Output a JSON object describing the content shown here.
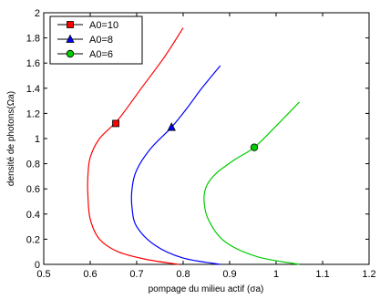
{
  "chart_data": {
    "type": "line",
    "title": "",
    "xlabel": "pompage du milieu actif (σa)",
    "ylabel": "densité de photons(Ωa)",
    "xlim": [
      0.5,
      1.2
    ],
    "ylim": [
      0,
      2
    ],
    "xticks": [
      0.5,
      0.6,
      0.7,
      0.8,
      0.9,
      1,
      1.1,
      1.2
    ],
    "yticks": [
      0,
      0.2,
      0.4,
      0.6,
      0.8,
      1,
      1.2,
      1.4,
      1.6,
      1.8,
      2
    ],
    "xtick_labels": [
      "0.5",
      "0.6",
      "0.7",
      "0.8",
      "0.9",
      "1",
      "1.1",
      "1.2"
    ],
    "ytick_labels": [
      "0",
      "0.2",
      "0.4",
      "0.6",
      "0.8",
      "1",
      "1.2",
      "1.4",
      "1.6",
      "1.8",
      "2"
    ],
    "grid": false,
    "legend_position": "top-left",
    "series": [
      {
        "name": "A0=10",
        "color": "#ff0000",
        "marker": "square",
        "marker_point": [
          0.655,
          1.12
        ],
        "x": [
          0.79,
          0.72,
          0.66,
          0.62,
          0.6,
          0.595,
          0.595,
          0.6,
          0.62,
          0.66,
          0.71,
          0.76,
          0.8
        ],
        "y": [
          0.0,
          0.04,
          0.1,
          0.2,
          0.36,
          0.55,
          0.7,
          0.85,
          1.0,
          1.15,
          1.4,
          1.65,
          1.88
        ]
      },
      {
        "name": "A0=8",
        "color": "#0000ff",
        "marker": "triangle",
        "marker_point": [
          0.775,
          1.09
        ],
        "x": [
          0.88,
          0.8,
          0.74,
          0.7,
          0.69,
          0.69,
          0.7,
          0.73,
          0.775,
          0.81,
          0.84,
          0.88
        ],
        "y": [
          0.0,
          0.05,
          0.15,
          0.3,
          0.45,
          0.6,
          0.75,
          0.92,
          1.09,
          1.25,
          1.4,
          1.58
        ]
      },
      {
        "name": "A0=6",
        "color": "#00cc00",
        "marker": "circle",
        "marker_point": [
          0.953,
          0.93
        ],
        "x": [
          1.05,
          0.96,
          0.89,
          0.855,
          0.845,
          0.85,
          0.87,
          0.91,
          0.953,
          1.0,
          1.05
        ],
        "y": [
          0.0,
          0.06,
          0.18,
          0.35,
          0.5,
          0.62,
          0.72,
          0.83,
          0.93,
          1.1,
          1.29
        ]
      }
    ]
  }
}
